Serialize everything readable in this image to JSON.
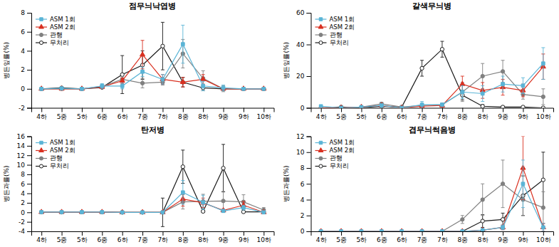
{
  "chart_data": [
    {
      "type": "line",
      "title": "점무늬낙엽병",
      "y_label": "병든잎률(%)",
      "categories": [
        "4하",
        "5중",
        "5하",
        "6중",
        "6하",
        "7중",
        "7하",
        "8중",
        "8하",
        "9중",
        "9하",
        "10하"
      ],
      "series": [
        {
          "name": "ASM 1회",
          "color": "#5ab4d6",
          "marker": "square",
          "values": [
            0.0,
            0.05,
            0.0,
            0.3,
            0.3,
            1.8,
            1.0,
            4.7,
            0.3,
            0.1,
            0.0,
            0.0
          ],
          "errors": [
            0.0,
            0.05,
            0.0,
            0.25,
            0.3,
            0.5,
            0.5,
            2.0,
            0.5,
            0.3,
            0.0,
            0.0
          ]
        },
        {
          "name": "ASM 2회",
          "color": "#d93020",
          "marker": "triangle",
          "values": [
            0.0,
            0.0,
            0.0,
            0.2,
            0.85,
            3.6,
            1.0,
            0.7,
            1.0,
            0.0,
            0.0,
            0.0
          ],
          "errors": [
            0.0,
            0.0,
            0.0,
            0.15,
            0.3,
            1.5,
            0.5,
            0.5,
            0.5,
            0.0,
            0.0,
            0.0
          ]
        },
        {
          "name": "관행",
          "color": "#808080",
          "marker": "circle",
          "values": [
            0.0,
            0.0,
            0.0,
            0.25,
            1.0,
            0.6,
            0.7,
            3.7,
            1.1,
            0.0,
            0.0,
            0.0
          ],
          "errors": [
            0.0,
            0.0,
            0.0,
            0.2,
            0.3,
            0.5,
            0.3,
            1.5,
            0.8,
            0.3,
            0.0,
            0.0
          ]
        },
        {
          "name": "무처리",
          "color": "#1a1a1a",
          "marker": "circle-open",
          "values": [
            0.0,
            0.1,
            0.0,
            0.15,
            1.5,
            2.5,
            4.5,
            0.7,
            0.1,
            0.0,
            0.0,
            0.0
          ],
          "errors": [
            0.0,
            0.1,
            0.0,
            0.1,
            2.0,
            1.5,
            2.5,
            0.5,
            0.3,
            0.0,
            0.0,
            0.0
          ]
        }
      ],
      "ylim": [
        -2,
        8
      ],
      "yticks": [
        -2,
        0,
        2,
        4,
        6,
        8
      ],
      "grid": false,
      "legend": "upper left"
    },
    {
      "type": "line",
      "title": "갈색무늬병",
      "y_label": "병든잎률(%)",
      "categories": [
        "4하",
        "5중",
        "5하",
        "6중",
        "6하",
        "7중",
        "7하",
        "8중",
        "8하",
        "9중",
        "9하",
        "10하"
      ],
      "series": [
        {
          "name": "ASM 1회",
          "color": "#5ab4d6",
          "marker": "square",
          "values": [
            1.0,
            0.0,
            0.5,
            1.5,
            0.0,
            2.0,
            2.0,
            10.0,
            9.0,
            15.0,
            14.0,
            28.0
          ],
          "errors": [
            0.0,
            0.0,
            0.5,
            1.0,
            0.0,
            2.0,
            1.0,
            4.0,
            5.0,
            5.0,
            5.0,
            10.0
          ]
        },
        {
          "name": "ASM 2회",
          "color": "#d93020",
          "marker": "triangle",
          "values": [
            0.0,
            0.0,
            0.5,
            1.5,
            0.0,
            1.0,
            1.5,
            15.0,
            11.0,
            13.0,
            11.0,
            26.0
          ],
          "errors": [
            0.0,
            0.0,
            0.5,
            1.0,
            0.0,
            0.5,
            1.0,
            5.0,
            5.0,
            5.0,
            4.0,
            8.0
          ]
        },
        {
          "name": "관행",
          "color": "#808080",
          "marker": "circle",
          "values": [
            0.0,
            0.0,
            0.5,
            2.5,
            0.5,
            1.5,
            2.0,
            10.0,
            20.0,
            23.0,
            8.5,
            7.0
          ],
          "errors": [
            0.0,
            0.0,
            0.3,
            1.0,
            0.5,
            1.0,
            1.0,
            6.0,
            8.0,
            7.0,
            3.0,
            5.0
          ]
        },
        {
          "name": "무처리",
          "color": "#1a1a1a",
          "marker": "circle-open",
          "values": [
            0.0,
            0.5,
            0.0,
            1.0,
            0.5,
            25.0,
            37.0,
            8.0,
            1.0,
            0.5,
            0.5,
            0.0
          ],
          "errors": [
            0.0,
            0.3,
            0.0,
            0.5,
            0.3,
            5.0,
            5.0,
            3.0,
            1.0,
            0.5,
            0.3,
            0.0
          ]
        }
      ],
      "ylim": [
        0,
        60
      ],
      "yticks": [
        0,
        20,
        40,
        60
      ],
      "grid": false,
      "legend": "upper left"
    },
    {
      "type": "line",
      "title": "탄저병",
      "y_label": "병든과률(%)",
      "categories": [
        "4하",
        "5중",
        "5하",
        "6중",
        "6하",
        "7중",
        "7하",
        "8중",
        "8하",
        "9중",
        "9하",
        "10하"
      ],
      "series": [
        {
          "name": "ASM 1회",
          "color": "#5ab4d6",
          "marker": "square",
          "values": [
            0.05,
            0.05,
            0.05,
            0.05,
            0.0,
            0.0,
            0.0,
            4.2,
            2.1,
            0.3,
            1.0,
            0.0
          ],
          "errors": [
            0.0,
            0.0,
            0.0,
            0.0,
            0.0,
            0.0,
            0.0,
            2.5,
            1.5,
            0.3,
            0.5,
            0.0
          ]
        },
        {
          "name": "ASM 2회",
          "color": "#d93020",
          "marker": "triangle",
          "values": [
            0.05,
            0.05,
            0.05,
            0.05,
            0.0,
            0.0,
            0.0,
            2.8,
            2.0,
            0.4,
            1.5,
            0.0
          ],
          "errors": [
            0.0,
            0.0,
            0.0,
            0.0,
            0.0,
            0.0,
            0.0,
            1.5,
            1.0,
            0.3,
            0.8,
            0.0
          ]
        },
        {
          "name": "관행",
          "color": "#808080",
          "marker": "circle",
          "values": [
            0.05,
            0.05,
            0.05,
            0.05,
            0.0,
            0.0,
            0.0,
            2.2,
            2.3,
            2.4,
            2.2,
            0.5
          ],
          "errors": [
            0.0,
            0.0,
            0.0,
            0.0,
            0.0,
            0.0,
            0.0,
            1.5,
            1.5,
            2.0,
            1.5,
            0.5
          ]
        },
        {
          "name": "무처리",
          "color": "#1a1a1a",
          "marker": "circle-open",
          "values": [
            0.05,
            0.05,
            0.05,
            0.05,
            0.0,
            0.0,
            0.0,
            9.6,
            0.2,
            9.3,
            0.1,
            0.1
          ],
          "errors": [
            0.0,
            0.0,
            0.0,
            0.0,
            0.0,
            0.0,
            3.0,
            3.5,
            0.2,
            5.0,
            0.1,
            0.1
          ]
        }
      ],
      "ylim": [
        -4,
        16
      ],
      "yticks": [
        -4,
        -2,
        0,
        2,
        4,
        6,
        8,
        10,
        12,
        14,
        16
      ],
      "grid": false,
      "legend": "upper left"
    },
    {
      "type": "line",
      "title": "겹무늬썩음병",
      "y_label": "병든과률(%)",
      "categories": [
        "4하",
        "5중",
        "5하",
        "6중",
        "6하",
        "7중",
        "7하",
        "8중",
        "8하",
        "9중",
        "9하",
        "10하"
      ],
      "series": [
        {
          "name": "ASM 1회",
          "color": "#5ab4d6",
          "marker": "square",
          "values": [
            0.0,
            0.0,
            0.0,
            0.0,
            0.0,
            0.0,
            0.0,
            0.0,
            0.15,
            0.5,
            6.0,
            0.5
          ],
          "errors": [
            0.0,
            0.0,
            0.0,
            0.0,
            0.0,
            0.0,
            0.0,
            0.0,
            0.1,
            0.3,
            3.0,
            0.5
          ]
        },
        {
          "name": "ASM 2회",
          "color": "#d93020",
          "marker": "triangle",
          "values": [
            0.0,
            0.0,
            0.0,
            0.0,
            0.0,
            0.0,
            0.0,
            0.0,
            0.15,
            0.5,
            8.0,
            0.5
          ],
          "errors": [
            0.0,
            0.0,
            0.0,
            0.0,
            0.0,
            0.0,
            0.0,
            0.0,
            0.1,
            0.3,
            4.0,
            0.5
          ]
        },
        {
          "name": "관행",
          "color": "#808080",
          "marker": "circle",
          "values": [
            0.0,
            0.0,
            0.0,
            0.0,
            0.0,
            0.0,
            0.0,
            1.5,
            4.0,
            6.0,
            4.0,
            3.0
          ],
          "errors": [
            0.0,
            0.0,
            0.0,
            0.0,
            0.0,
            0.0,
            0.0,
            0.5,
            2.0,
            3.0,
            2.0,
            2.0
          ]
        },
        {
          "name": "무처리",
          "color": "#1a1a1a",
          "marker": "circle-open",
          "values": [
            0.0,
            0.0,
            0.0,
            0.0,
            0.0,
            0.0,
            0.0,
            0.0,
            1.3,
            1.5,
            4.5,
            6.5
          ],
          "errors": [
            0.0,
            0.0,
            0.0,
            0.0,
            0.0,
            0.0,
            0.0,
            0.0,
            0.8,
            0.8,
            2.5,
            3.5
          ]
        }
      ],
      "ylim": [
        0,
        12
      ],
      "yticks": [
        0,
        2,
        4,
        6,
        8,
        10,
        12
      ],
      "grid": false,
      "legend": "upper left"
    }
  ]
}
